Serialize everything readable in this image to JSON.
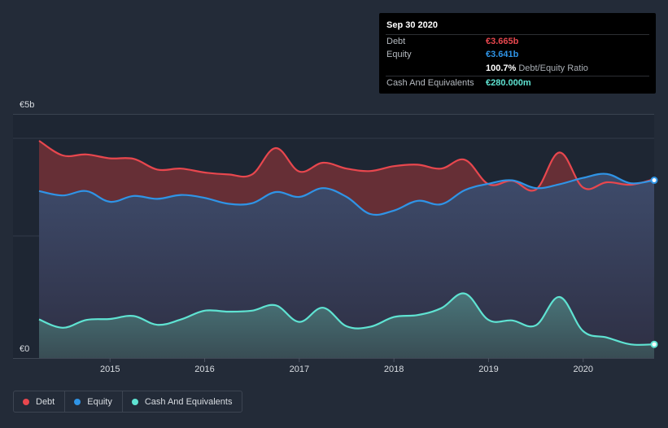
{
  "tooltip": {
    "date": "Sep 30 2020",
    "rows": [
      {
        "label": "Debt",
        "value": "€3.665b",
        "color": "#e8474e"
      },
      {
        "label": "Equity",
        "value": "€3.641b",
        "color": "#2f94e6"
      },
      {
        "label": "",
        "value": "100.7%",
        "extra": "Debt/Equity Ratio",
        "color": "#ffffff"
      },
      {
        "label": "Cash And Equivalents",
        "value": "€280.000m",
        "color": "#5fe3d2"
      }
    ]
  },
  "legend": [
    {
      "label": "Debt",
      "color": "#e8474e"
    },
    {
      "label": "Equity",
      "color": "#2f94e6"
    },
    {
      "label": "Cash And Equivalents",
      "color": "#5fe3d2"
    }
  ],
  "chart_data": {
    "type": "area",
    "title": "",
    "xlabel": "",
    "ylabel": "",
    "y_unit": "EUR billions",
    "ylim": [
      0,
      5
    ],
    "xlim": [
      2014.25,
      2020.75
    ],
    "y_tick_labels": [
      {
        "value": 0,
        "label": "€0"
      },
      {
        "value": 5,
        "label": "€5b"
      }
    ],
    "x_ticks": [
      {
        "value": 2015,
        "label": "2015"
      },
      {
        "value": 2016,
        "label": "2016"
      },
      {
        "value": 2017,
        "label": "2017"
      },
      {
        "value": 2018,
        "label": "2018"
      },
      {
        "value": 2019,
        "label": "2019"
      },
      {
        "value": 2020,
        "label": "2020"
      }
    ],
    "gridlines": [
      4.5,
      2.5
    ],
    "series": [
      {
        "name": "Debt",
        "color": "#e8474e",
        "points": [
          [
            2014.25,
            4.45
          ],
          [
            2014.5,
            4.15
          ],
          [
            2014.75,
            4.17
          ],
          [
            2015.0,
            4.09
          ],
          [
            2015.25,
            4.08
          ],
          [
            2015.5,
            3.86
          ],
          [
            2015.75,
            3.88
          ],
          [
            2016.0,
            3.8
          ],
          [
            2016.25,
            3.76
          ],
          [
            2016.5,
            3.76
          ],
          [
            2016.75,
            4.3
          ],
          [
            2017.0,
            3.82
          ],
          [
            2017.25,
            4.0
          ],
          [
            2017.5,
            3.88
          ],
          [
            2017.75,
            3.83
          ],
          [
            2018.0,
            3.93
          ],
          [
            2018.25,
            3.96
          ],
          [
            2018.5,
            3.88
          ],
          [
            2018.75,
            4.06
          ],
          [
            2019.0,
            3.56
          ],
          [
            2019.25,
            3.63
          ],
          [
            2019.5,
            3.45
          ],
          [
            2019.75,
            4.21
          ],
          [
            2020.0,
            3.49
          ],
          [
            2020.25,
            3.6
          ],
          [
            2020.5,
            3.55
          ],
          [
            2020.75,
            3.665
          ]
        ]
      },
      {
        "name": "Equity",
        "color": "#2f94e6",
        "points": [
          [
            2014.25,
            3.42
          ],
          [
            2014.5,
            3.33
          ],
          [
            2014.75,
            3.42
          ],
          [
            2015.0,
            3.2
          ],
          [
            2015.25,
            3.32
          ],
          [
            2015.5,
            3.26
          ],
          [
            2015.75,
            3.34
          ],
          [
            2016.0,
            3.28
          ],
          [
            2016.25,
            3.16
          ],
          [
            2016.5,
            3.17
          ],
          [
            2016.75,
            3.4
          ],
          [
            2017.0,
            3.3
          ],
          [
            2017.25,
            3.48
          ],
          [
            2017.5,
            3.3
          ],
          [
            2017.75,
            2.95
          ],
          [
            2018.0,
            3.02
          ],
          [
            2018.25,
            3.22
          ],
          [
            2018.5,
            3.15
          ],
          [
            2018.75,
            3.44
          ],
          [
            2019.0,
            3.57
          ],
          [
            2019.25,
            3.64
          ],
          [
            2019.5,
            3.48
          ],
          [
            2019.75,
            3.56
          ],
          [
            2020.0,
            3.69
          ],
          [
            2020.25,
            3.77
          ],
          [
            2020.5,
            3.58
          ],
          [
            2020.75,
            3.641
          ]
        ]
      },
      {
        "name": "Cash And Equivalents",
        "color": "#5fe3d2",
        "points": [
          [
            2014.25,
            0.79
          ],
          [
            2014.5,
            0.62
          ],
          [
            2014.75,
            0.78
          ],
          [
            2015.0,
            0.8
          ],
          [
            2015.25,
            0.86
          ],
          [
            2015.5,
            0.68
          ],
          [
            2015.75,
            0.79
          ],
          [
            2016.0,
            0.97
          ],
          [
            2016.25,
            0.95
          ],
          [
            2016.5,
            0.97
          ],
          [
            2016.75,
            1.08
          ],
          [
            2017.0,
            0.74
          ],
          [
            2017.25,
            1.03
          ],
          [
            2017.5,
            0.65
          ],
          [
            2017.75,
            0.64
          ],
          [
            2018.0,
            0.84
          ],
          [
            2018.25,
            0.88
          ],
          [
            2018.5,
            1.02
          ],
          [
            2018.75,
            1.32
          ],
          [
            2019.0,
            0.78
          ],
          [
            2019.25,
            0.77
          ],
          [
            2019.5,
            0.67
          ],
          [
            2019.75,
            1.25
          ],
          [
            2020.0,
            0.55
          ],
          [
            2020.25,
            0.42
          ],
          [
            2020.5,
            0.28
          ],
          [
            2020.75,
            0.28
          ]
        ]
      }
    ]
  }
}
